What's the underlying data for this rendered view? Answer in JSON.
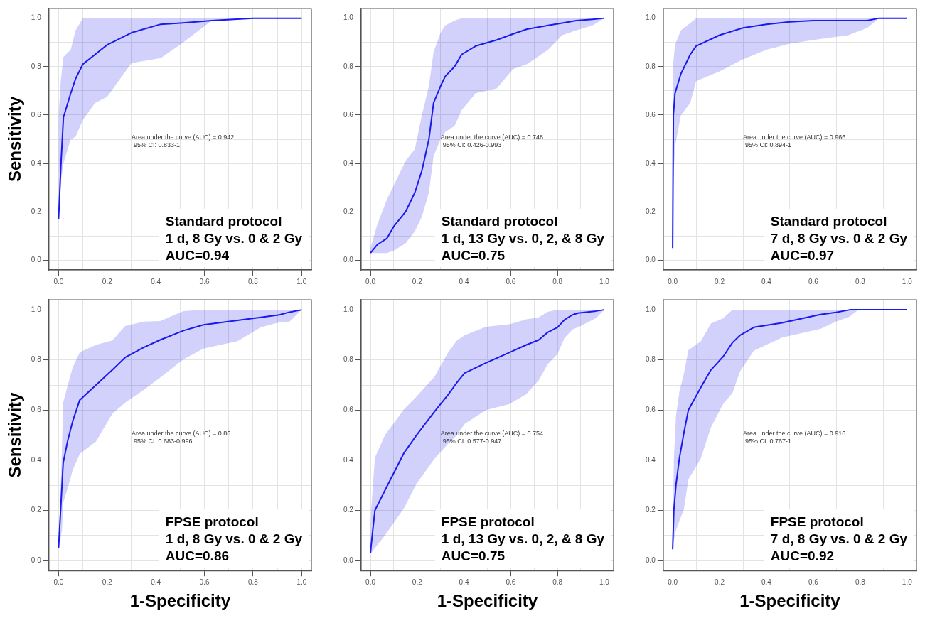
{
  "chart_data": [
    {
      "type": "line",
      "ylabel": "Sensitivity",
      "xlim": [
        -0.04,
        1.04
      ],
      "ylim": [
        -0.04,
        1.04
      ],
      "grid": true,
      "marker": "none",
      "xticks": [
        {
          "value": 0,
          "label": "0.0"
        },
        {
          "value": 0.1,
          "label": null
        },
        0.2,
        {
          "value": 0.3,
          "label": null
        },
        0.4,
        {
          "value": 0.5,
          "label": null
        },
        0.6,
        {
          "value": 0.7,
          "label": null
        },
        0.8,
        {
          "value": 0.9,
          "label": null
        },
        {
          "value": 1,
          "label": "1.0"
        }
      ],
      "yticks": [
        {
          "value": 0,
          "label": "0.0"
        },
        {
          "value": 0.1,
          "label": null
        },
        0.2,
        {
          "value": 0.3,
          "label": null
        },
        0.4,
        {
          "value": 0.5,
          "label": null
        },
        0.6,
        {
          "value": 0.7,
          "label": null
        },
        0.8,
        {
          "value": 0.9,
          "label": null
        },
        {
          "value": 1,
          "label": "1.0"
        }
      ],
      "annotations": [
        "Area under the curve (AUC) = 0.942",
        "95% CI: 0.833-1",
        "Standard protocol",
        "1 d, 8 Gy vs. 0 & 2 Gy",
        "AUC=0.94"
      ],
      "x": [
        0,
        0.01,
        0.02,
        0.05,
        0.07,
        0.1,
        0.15,
        0.2,
        0.3,
        0.42,
        0.5,
        0.63,
        0.8,
        1
      ],
      "series": [
        {
          "color": "#1a1aee",
          "values": [
            0.17,
            0.4,
            0.59,
            0.69,
            0.75,
            0.81,
            0.85,
            0.89,
            0.94,
            0.975,
            0.98,
            0.99,
            1,
            1
          ],
          "lower": [
            0.17,
            0.33,
            0.4,
            0.5,
            0.51,
            0.58,
            0.65,
            0.675,
            0.815,
            0.835,
            0.89,
            0.99,
            1,
            1
          ],
          "upper": [
            0.6,
            0.75,
            0.84,
            0.87,
            0.95,
            1,
            1,
            1,
            1,
            1,
            1,
            1,
            1,
            1
          ]
        }
      ]
    },
    {
      "type": "line",
      "xlim": [
        -0.04,
        1.04
      ],
      "ylim": [
        -0.04,
        1.04
      ],
      "grid": true,
      "marker": "none",
      "xticks": [
        {
          "value": 0,
          "label": "0.0"
        },
        {
          "value": 0.1,
          "label": null
        },
        0.2,
        {
          "value": 0.3,
          "label": null
        },
        0.4,
        {
          "value": 0.5,
          "label": null
        },
        0.6,
        {
          "value": 0.7,
          "label": null
        },
        0.8,
        {
          "value": 0.9,
          "label": null
        },
        {
          "value": 1,
          "label": "1.0"
        }
      ],
      "yticks": [
        {
          "value": 0,
          "label": "0.0"
        },
        {
          "value": 0.1,
          "label": null
        },
        0.2,
        {
          "value": 0.3,
          "label": null
        },
        0.4,
        {
          "value": 0.5,
          "label": null
        },
        0.6,
        {
          "value": 0.7,
          "label": null
        },
        0.8,
        {
          "value": 0.9,
          "label": null
        },
        {
          "value": 1,
          "label": "1.0"
        }
      ],
      "annotations": [
        "Area under the curve (AUC) = 0.748",
        "95% CI: 0.426-0.993",
        "Standard protocol",
        "1 d, 13 Gy vs. 0, 2, & 8 Gy",
        "AUC=0.75"
      ],
      "x": [
        0,
        0.03,
        0.07,
        0.1,
        0.15,
        0.19,
        0.22,
        0.25,
        0.27,
        0.3,
        0.32,
        0.36,
        0.39,
        0.45,
        0.54,
        0.61,
        0.67,
        0.76,
        0.82,
        0.88,
        0.95,
        1
      ],
      "series": [
        {
          "color": "#1a1aee",
          "values": [
            0.03,
            0.065,
            0.09,
            0.14,
            0.2,
            0.28,
            0.37,
            0.5,
            0.65,
            0.72,
            0.76,
            0.8,
            0.85,
            0.885,
            0.91,
            0.935,
            0.955,
            0.97,
            0.98,
            0.99,
            0.995,
            1
          ],
          "lower": [
            0.03,
            0.03,
            0.03,
            0.04,
            0.07,
            0.12,
            0.18,
            0.28,
            0.43,
            0.5,
            0.53,
            0.555,
            0.62,
            0.69,
            0.71,
            0.79,
            0.81,
            0.87,
            0.93,
            0.95,
            0.97,
            1
          ],
          "upper": [
            0.05,
            0.15,
            0.25,
            0.31,
            0.41,
            0.46,
            0.6,
            0.72,
            0.86,
            0.94,
            0.97,
            0.99,
            1,
            1,
            1,
            1,
            1,
            1,
            1,
            1,
            1,
            1
          ]
        }
      ]
    },
    {
      "type": "line",
      "xlim": [
        -0.04,
        1.04
      ],
      "ylim": [
        -0.04,
        1.04
      ],
      "grid": true,
      "marker": "none",
      "xticks": [
        {
          "value": 0,
          "label": "0.0"
        },
        {
          "value": 0.1,
          "label": null
        },
        0.2,
        {
          "value": 0.3,
          "label": null
        },
        0.4,
        {
          "value": 0.5,
          "label": null
        },
        0.6,
        {
          "value": 0.7,
          "label": null
        },
        0.8,
        {
          "value": 0.9,
          "label": null
        },
        {
          "value": 1,
          "label": "1.0"
        }
      ],
      "yticks": [
        {
          "value": 0,
          "label": "0.0"
        },
        {
          "value": 0.1,
          "label": null
        },
        0.2,
        {
          "value": 0.3,
          "label": null
        },
        0.4,
        {
          "value": 0.5,
          "label": null
        },
        0.6,
        {
          "value": 0.7,
          "label": null
        },
        0.8,
        {
          "value": 0.9,
          "label": null
        },
        {
          "value": 1,
          "label": "1.0"
        }
      ],
      "annotations": [
        "Area under the curve (AUC) = 0.966",
        "95% CI: 0.894-1",
        "Standard protocol",
        "7 d, 8 Gy vs. 0 & 2 Gy",
        "AUC=0.97"
      ],
      "x": [
        0,
        0.003,
        0.01,
        0.035,
        0.075,
        0.1,
        0.2,
        0.3,
        0.4,
        0.5,
        0.6,
        0.75,
        0.83,
        0.88,
        1
      ],
      "series": [
        {
          "color": "#1a1aee",
          "values": [
            0.05,
            0.6,
            0.69,
            0.77,
            0.85,
            0.885,
            0.93,
            0.96,
            0.975,
            0.985,
            0.99,
            0.99,
            0.99,
            1,
            1
          ],
          "lower": [
            0.05,
            0.33,
            0.47,
            0.6,
            0.65,
            0.74,
            0.78,
            0.83,
            0.87,
            0.895,
            0.91,
            0.93,
            0.96,
            1,
            1
          ],
          "upper": [
            0.8,
            0.82,
            0.89,
            0.95,
            0.98,
            1,
            1,
            1,
            1,
            1,
            1,
            1,
            1,
            1,
            1
          ]
        }
      ]
    },
    {
      "type": "line",
      "xlabel": "1-Specificity",
      "ylabel": "Sensitivity",
      "xlim": [
        -0.04,
        1.04
      ],
      "ylim": [
        -0.04,
        1.04
      ],
      "grid": true,
      "marker": "none",
      "xticks": [
        {
          "value": 0,
          "label": "0.0"
        },
        {
          "value": 0.1,
          "label": null
        },
        0.2,
        {
          "value": 0.3,
          "label": null
        },
        0.4,
        {
          "value": 0.5,
          "label": null
        },
        0.6,
        {
          "value": 0.7,
          "label": null
        },
        0.8,
        {
          "value": 0.9,
          "label": null
        },
        {
          "value": 1,
          "label": "1.0"
        }
      ],
      "yticks": [
        {
          "value": 0,
          "label": "0.0"
        },
        {
          "value": 0.1,
          "label": null
        },
        0.2,
        {
          "value": 0.3,
          "label": null
        },
        0.4,
        {
          "value": 0.5,
          "label": null
        },
        0.6,
        {
          "value": 0.7,
          "label": null
        },
        0.8,
        {
          "value": 0.9,
          "label": null
        },
        {
          "value": 1,
          "label": "1.0"
        }
      ],
      "annotations": [
        "Area under the curve (AUC) = 0.86",
        "95% CI: 0.683-0.996",
        "FPSE protocol",
        "1 d, 8 Gy vs. 0 & 2 Gy",
        "AUC=0.86"
      ],
      "x": [
        0,
        0.014,
        0.019,
        0.038,
        0.058,
        0.087,
        0.154,
        0.221,
        0.274,
        0.35,
        0.418,
        0.514,
        0.596,
        0.736,
        0.832,
        0.908,
        0.947,
        1
      ],
      "series": [
        {
          "color": "#1a1aee",
          "values": [
            0.05,
            0.3,
            0.39,
            0.48,
            0.555,
            0.64,
            0.7,
            0.76,
            0.81,
            0.85,
            0.88,
            0.917,
            0.94,
            0.958,
            0.97,
            0.98,
            0.99,
            1
          ],
          "lower": [
            0.05,
            0.12,
            0.23,
            0.29,
            0.36,
            0.425,
            0.475,
            0.585,
            0.63,
            0.68,
            0.73,
            0.803,
            0.845,
            0.875,
            0.93,
            0.95,
            0.95,
            1
          ],
          "upper": [
            0.05,
            0.45,
            0.63,
            0.7,
            0.77,
            0.83,
            0.86,
            0.878,
            0.935,
            0.953,
            0.955,
            0.995,
            1,
            1,
            1,
            1,
            1,
            1
          ]
        }
      ]
    },
    {
      "type": "line",
      "xlabel": "1-Specificity",
      "xlim": [
        -0.04,
        1.04
      ],
      "ylim": [
        -0.04,
        1.04
      ],
      "grid": true,
      "marker": "none",
      "xticks": [
        {
          "value": 0,
          "label": "0.0"
        },
        {
          "value": 0.1,
          "label": null
        },
        0.2,
        {
          "value": 0.3,
          "label": null
        },
        0.4,
        {
          "value": 0.5,
          "label": null
        },
        0.6,
        {
          "value": 0.7,
          "label": null
        },
        0.8,
        {
          "value": 0.9,
          "label": null
        },
        {
          "value": 1,
          "label": "1.0"
        }
      ],
      "yticks": [
        {
          "value": 0,
          "label": "0.0"
        },
        {
          "value": 0.1,
          "label": null
        },
        0.2,
        {
          "value": 0.3,
          "label": null
        },
        0.4,
        {
          "value": 0.5,
          "label": null
        },
        0.6,
        {
          "value": 0.7,
          "label": null
        },
        0.8,
        {
          "value": 0.9,
          "label": null
        },
        {
          "value": 1,
          "label": "1.0"
        }
      ],
      "annotations": [
        "Area under the curve (AUC) = 0.754",
        "95% CI: 0.577-0.947",
        "FPSE protocol",
        "1 d, 13 Gy vs. 0, 2, & 8 Gy",
        "AUC=0.75"
      ],
      "x": [
        0,
        0.003,
        0.019,
        0.062,
        0.144,
        0.197,
        0.274,
        0.331,
        0.37,
        0.403,
        0.494,
        0.595,
        0.667,
        0.72,
        0.758,
        0.8,
        0.83,
        0.864,
        0.888,
        0.965,
        1
      ],
      "series": [
        {
          "color": "#1a1aee",
          "values": [
            0.03,
            0.06,
            0.2,
            0.28,
            0.43,
            0.5,
            0.594,
            0.66,
            0.71,
            0.748,
            0.788,
            0.83,
            0.86,
            0.88,
            0.91,
            0.93,
            0.96,
            0.98,
            0.987,
            0.995,
            1
          ],
          "lower": [
            0.03,
            0.03,
            0.05,
            0.1,
            0.21,
            0.306,
            0.406,
            0.465,
            0.5,
            0.545,
            0.6,
            0.624,
            0.664,
            0.719,
            0.783,
            0.823,
            0.888,
            0.922,
            0.93,
            0.967,
            1
          ],
          "upper": [
            0.05,
            0.2,
            0.41,
            0.5,
            0.604,
            0.654,
            0.733,
            0.828,
            0.878,
            0.898,
            0.932,
            0.942,
            0.962,
            0.97,
            0.992,
            1,
            1,
            1,
            1,
            1,
            1
          ]
        }
      ]
    },
    {
      "type": "line",
      "xlabel": "1-Specificity",
      "xlim": [
        -0.04,
        1.04
      ],
      "ylim": [
        -0.04,
        1.04
      ],
      "grid": true,
      "marker": "none",
      "xticks": [
        {
          "value": 0,
          "label": "0.0"
        },
        {
          "value": 0.1,
          "label": null
        },
        0.2,
        {
          "value": 0.3,
          "label": null
        },
        0.4,
        {
          "value": 0.5,
          "label": null
        },
        0.6,
        {
          "value": 0.7,
          "label": null
        },
        0.8,
        {
          "value": 0.9,
          "label": null
        },
        {
          "value": 1,
          "label": "1.0"
        }
      ],
      "yticks": [
        {
          "value": 0,
          "label": "0.0"
        },
        {
          "value": 0.1,
          "label": null
        },
        0.2,
        {
          "value": 0.3,
          "label": null
        },
        0.4,
        {
          "value": 0.5,
          "label": null
        },
        0.6,
        {
          "value": 0.7,
          "label": null
        },
        0.8,
        {
          "value": 0.9,
          "label": null
        },
        {
          "value": 1,
          "label": "1.0"
        }
      ],
      "annotations": [
        "Area under the curve (AUC) = 0.916",
        "95% CI: 0.767-1",
        "FPSE protocol",
        "7 d, 8 Gy vs. 0 & 2 Gy",
        "AUC=0.92"
      ],
      "x": [
        0,
        0.005,
        0.014,
        0.029,
        0.048,
        0.067,
        0.12,
        0.163,
        0.216,
        0.255,
        0.288,
        0.346,
        0.466,
        0.63,
        0.697,
        0.755,
        0.793,
        1
      ],
      "series": [
        {
          "color": "#1a1aee",
          "values": [
            0.045,
            0.2,
            0.3,
            0.41,
            0.51,
            0.6,
            0.69,
            0.76,
            0.814,
            0.869,
            0.899,
            0.93,
            0.948,
            0.981,
            0.99,
            1,
            1,
            1
          ],
          "lower": [
            0.045,
            0.08,
            0.12,
            0.159,
            0.204,
            0.323,
            0.407,
            0.531,
            0.626,
            0.668,
            0.755,
            0.837,
            0.889,
            0.924,
            0.953,
            0.973,
            1,
            1
          ],
          "upper": [
            0.045,
            0.4,
            0.576,
            0.675,
            0.745,
            0.839,
            0.874,
            0.945,
            0.966,
            1,
            1,
            1,
            1,
            1,
            1,
            1,
            1,
            1
          ]
        }
      ]
    }
  ]
}
